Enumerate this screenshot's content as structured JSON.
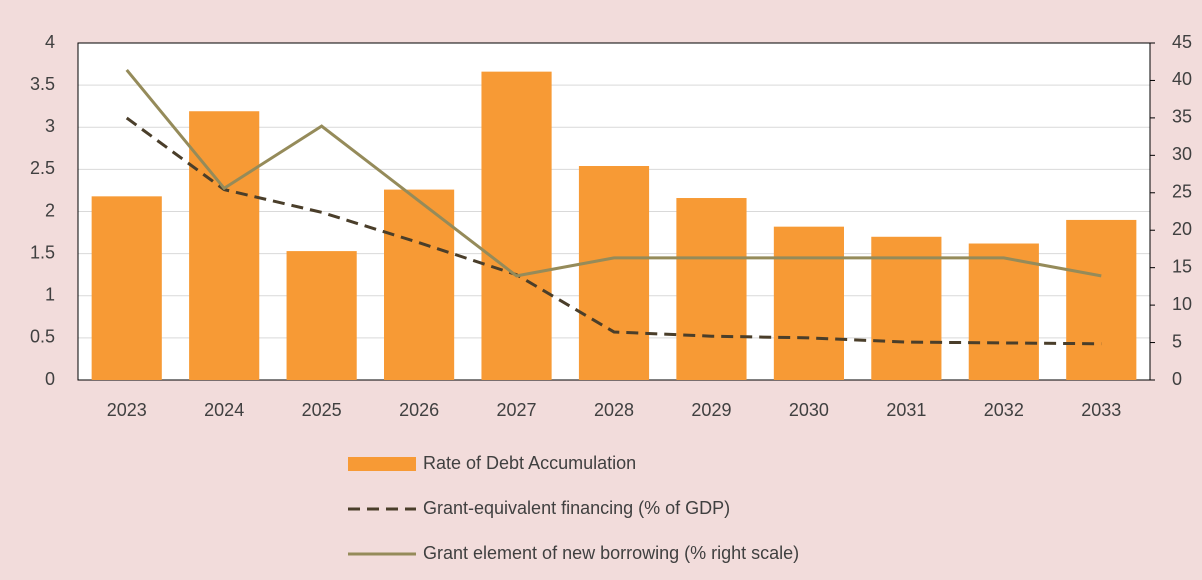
{
  "chart_data": {
    "type": "bar-line",
    "categories": [
      "2023",
      "2024",
      "2025",
      "2026",
      "2027",
      "2028",
      "2029",
      "2030",
      "2031",
      "2032",
      "2033"
    ],
    "series": [
      {
        "name": "Rate of Debt Accumulation",
        "type": "bar",
        "color": "#f79a35",
        "values": [
          2.18,
          3.19,
          1.53,
          2.26,
          3.66,
          2.54,
          2.16,
          1.82,
          1.7,
          1.62,
          1.9
        ]
      },
      {
        "name": "Grant-equivalent financing (% of GDP)",
        "type": "line",
        "dashed": true,
        "color": "#4a3e2a",
        "values": [
          3.11,
          2.26,
          1.99,
          1.63,
          1.25,
          0.57,
          0.52,
          0.5,
          0.45,
          0.44,
          0.43
        ]
      },
      {
        "name": "Grant element of new borrowing (% right scale)",
        "type": "line",
        "axis": "y2",
        "color": "#958b5a",
        "values": [
          41.4,
          25.6,
          33.9,
          23.9,
          13.9,
          16.3,
          16.3,
          16.3,
          16.3,
          16.3,
          13.9
        ]
      }
    ],
    "ylim": [
      0,
      4
    ],
    "yticks": [
      0,
      0.5,
      1,
      1.5,
      2,
      2.5,
      3,
      3.5,
      4
    ],
    "y2lim": [
      0,
      45
    ],
    "y2ticks": [
      0,
      5,
      10,
      15,
      20,
      25,
      30,
      35,
      40,
      45
    ],
    "grid": true
  }
}
